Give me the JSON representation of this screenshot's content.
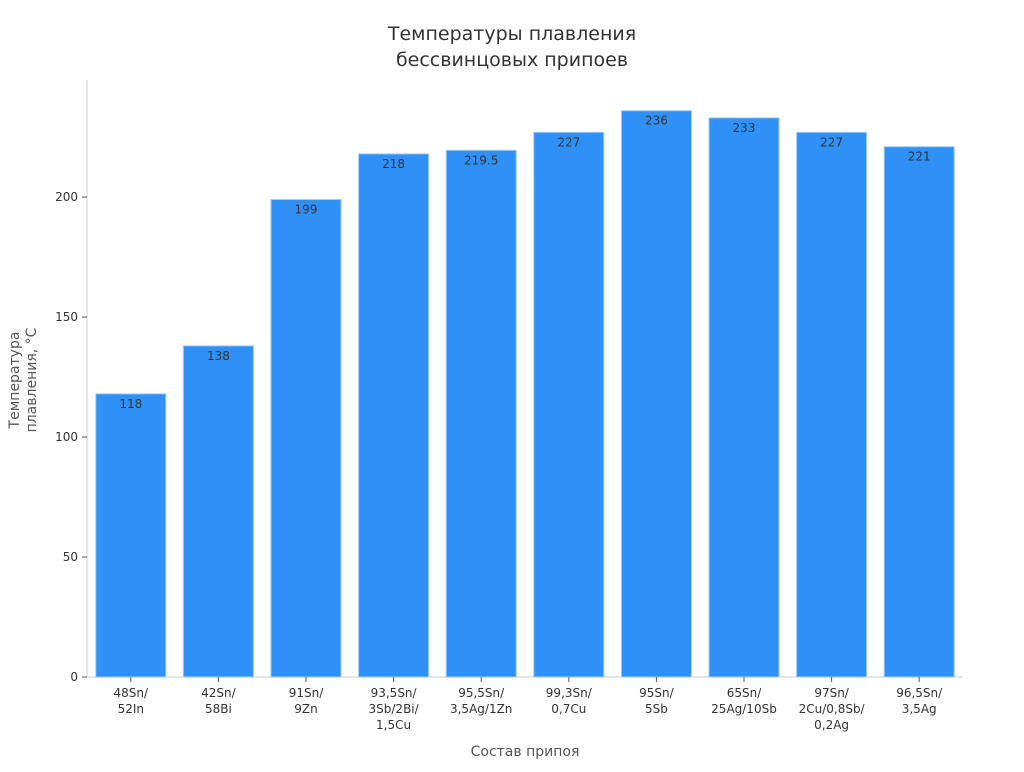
{
  "chart_data": {
    "type": "bar",
    "title": [
      "Температуры плавления",
      "бессвинцовых припоев"
    ],
    "xlabel": "Состав припоя",
    "ylabel": [
      "Температура",
      "плавления, °C"
    ],
    "categories": [
      [
        "48Sn/",
        "52In"
      ],
      [
        "42Sn/",
        "58Bi"
      ],
      [
        "91Sn/",
        "9Zn"
      ],
      [
        "93,5Sn/",
        "3Sb/2Bi/",
        "1,5Cu"
      ],
      [
        "95,5Sn/",
        "3,5Ag/1Zn"
      ],
      [
        "99,3Sn/",
        "0,7Cu"
      ],
      [
        "95Sn/",
        "5Sb"
      ],
      [
        "65Sn/",
        "25Ag/10Sb"
      ],
      [
        "97Sn/",
        "2Cu/0,8Sb/",
        "0,2Ag"
      ],
      [
        "96,5Sn/",
        "3,5Ag"
      ]
    ],
    "values": [
      118,
      138,
      199,
      218,
      219.5,
      227,
      236,
      233,
      227,
      221
    ],
    "value_labels": [
      "118",
      "138",
      "199",
      "218",
      "219.5",
      "227",
      "236",
      "233",
      "227",
      "221"
    ],
    "yticks": [
      0,
      50,
      100,
      150,
      200
    ],
    "ylim": [
      0,
      248.8
    ],
    "grid": false,
    "bar_color": "#2f91f7",
    "bar_edge_color": "#9fcbf7"
  }
}
